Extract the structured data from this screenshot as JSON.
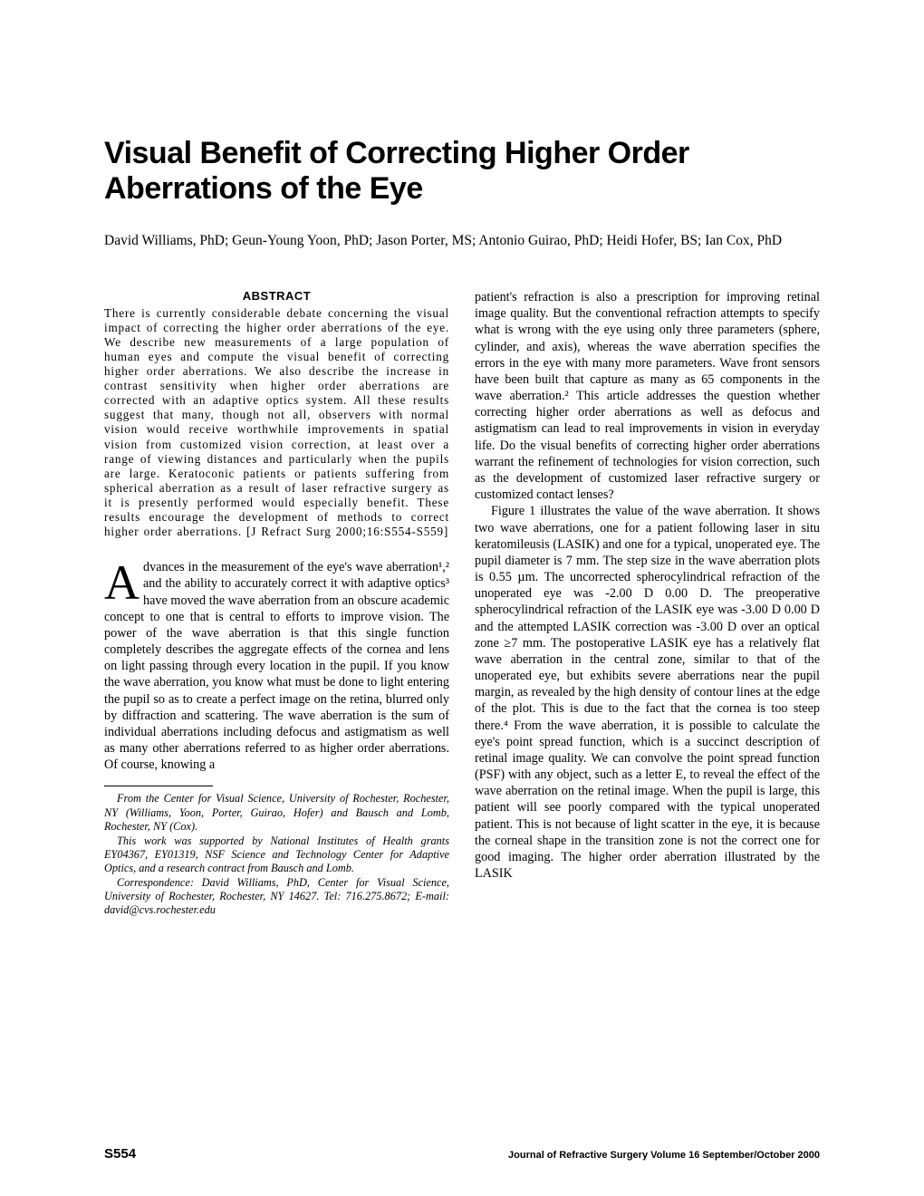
{
  "title": "Visual Benefit of Correcting Higher Order Aberrations of the Eye",
  "authors": "David Williams, PhD; Geun-Young Yoon, PhD; Jason Porter, MS; Antonio Guirao, PhD; Heidi Hofer, BS; Ian Cox, PhD",
  "abstract": {
    "heading": "ABSTRACT",
    "text": "There is currently considerable debate concerning the visual impact of correcting the higher order aberrations of the eye. We describe new measurements of a large population of human eyes and compute the visual benefit of correcting higher order aberrations. We also describe the increase in contrast sensitivity when higher order aberrations are corrected with an adaptive optics system. All these results suggest that many, though not all, observers with normal vision would receive worthwhile improvements in spatial vision from customized vision correction, at least over a range of viewing distances and particularly when the pupils are large. Keratoconic patients or patients suffering from spherical aberration as a result of laser refractive surgery as it is presently performed would especially benefit. These results encourage the development of methods to correct higher order aberrations. [J Refract Surg 2000;16:S554-S559]"
  },
  "body": {
    "p1_dropcap": "A",
    "p1": "dvances in the measurement of the eye's wave aberration¹,² and the ability to accurately correct it with adaptive optics³ have moved the wave aberration from an obscure academic concept to one that is central to efforts to improve vision. The power of the wave aberration is that this single function completely describes the aggregate effects of the cornea and lens on light passing through every location in the pupil. If you know the wave aberration, you know what must be done to light entering the pupil so as to create a perfect image on the retina, blurred only by diffraction and scattering. The wave aberration is the sum of individual aberrations including defocus and astigmatism as well as many other aberrations referred to as higher order aberrations. Of course, knowing a",
    "p2": "patient's refraction is also a prescription for improving retinal image quality. But the conventional refraction attempts to specify what is wrong with the eye using only three parameters (sphere, cylinder, and axis), whereas the wave aberration specifies the errors in the eye with many more parameters. Wave front sensors have been built that capture as many as 65 components in the wave aberration.² This article addresses the question whether correcting higher order aberrations as well as defocus and astigmatism can lead to real improvements in vision in everyday life. Do the visual benefits of correcting higher order aberrations warrant the refinement of technologies for vision correction, such as the development of customized laser refractive surgery or customized contact lenses?",
    "p3": "Figure 1 illustrates the value of the wave aberration. It shows two wave aberrations, one for a patient following laser in situ keratomileusis (LASIK) and one for a typical, unoperated eye. The pupil diameter is 7 mm. The step size in the wave aberration plots is 0.55 µm. The uncorrected spherocylindrical refraction of the unoperated eye was -2.00 D 0.00 D. The preoperative spherocylindrical refraction of the LASIK eye was -3.00 D 0.00 D and the attempted LASIK correction was -3.00 D over an optical zone ≥7 mm. The postoperative LASIK eye has a relatively flat wave aberration in the central zone, similar to that of the unoperated eye, but exhibits severe aberrations near the pupil margin, as revealed by the high density of contour lines at the edge of the plot. This is due to the fact that the cornea is too steep there.⁴ From the wave aberration, it is possible to calculate the eye's point spread function, which is a succinct description of retinal image quality. We can convolve the point spread function (PSF) with any object, such as a letter E, to reveal the effect of the wave aberration on the retinal image. When the pupil is large, this patient will see poorly compared with the typical unoperated patient. This is not because of light scatter in the eye, it is because the corneal shape in the transition zone is not the correct one for good imaging. The higher order aberration illustrated by the LASIK"
  },
  "footnotes": {
    "f1": "From the Center for Visual Science, University of Rochester, Rochester, NY (Williams, Yoon, Porter, Guirao, Hofer) and Bausch and Lomb, Rochester, NY (Cox).",
    "f2": "This work was supported by National Institutes of Health grants EY04367, EY01319, NSF Science and Technology Center for Adaptive Optics, and a research contract from Bausch and Lomb.",
    "f3": "Correspondence: David Williams, PhD, Center for Visual Science, University of Rochester, Rochester, NY 14627. Tel: 716.275.8672; E-mail: david@cvs.rochester.edu"
  },
  "footer": {
    "page": "S554",
    "journal": "Journal of Refractive Surgery  Volume 16  September/October 2000"
  }
}
